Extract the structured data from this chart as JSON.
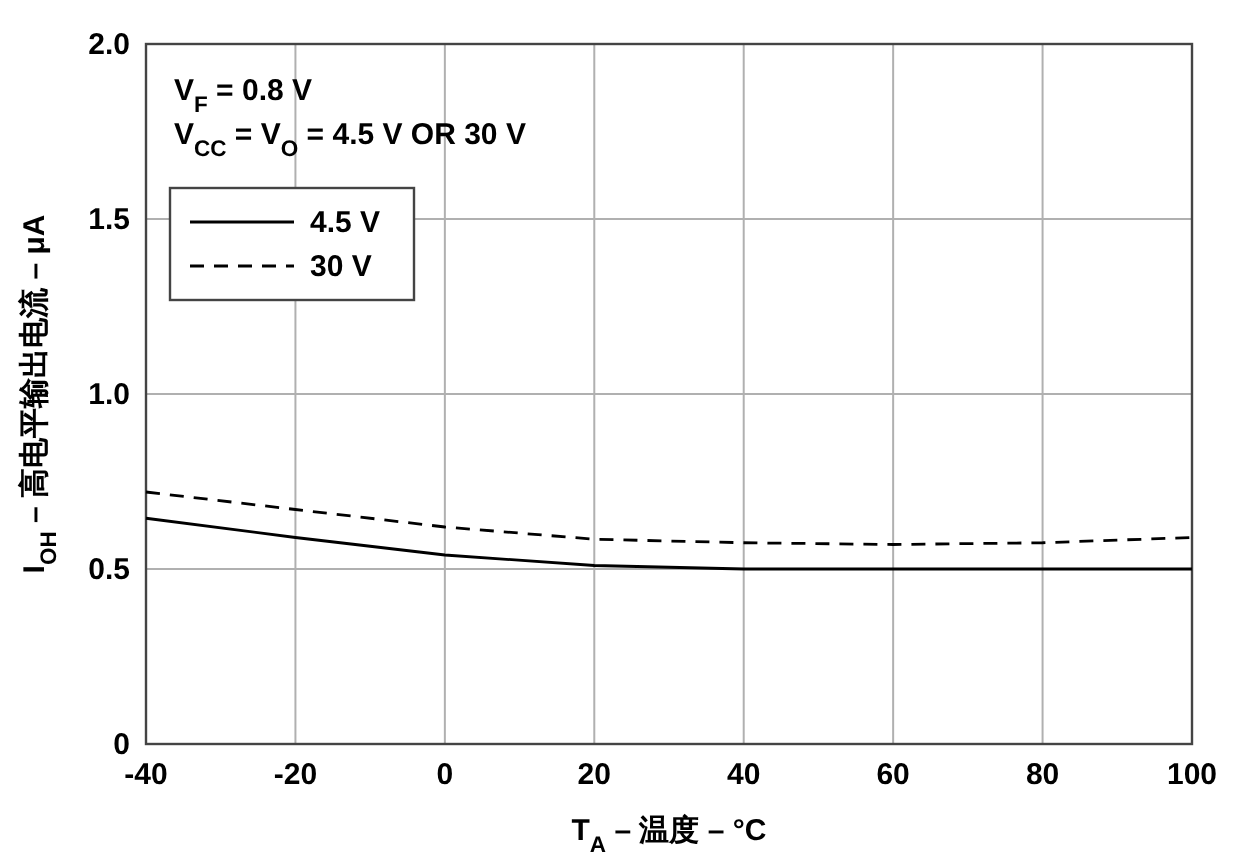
{
  "chart_data": {
    "type": "line",
    "xlabel": "T$_{A}$ – 温度 – °C",
    "ylabel": "I$_{OH}$ – 高电平输出电流 – μA",
    "annotations": [
      "V$_{F}$ = 0.8 V",
      "V$_{CC}$ = V$_{O}$ = 4.5 V OR 30 V"
    ],
    "x": [
      -40,
      -20,
      0,
      20,
      40,
      60,
      80,
      100
    ],
    "series": [
      {
        "name": "4.5 V",
        "color": "#000000",
        "line_style": "solid",
        "values": [
          0.645,
          0.59,
          0.54,
          0.51,
          0.5,
          0.5,
          0.5,
          0.5
        ]
      },
      {
        "name": "30 V",
        "color": "#000000",
        "line_style": "dashed",
        "values": [
          0.72,
          0.67,
          0.62,
          0.585,
          0.575,
          0.57,
          0.575,
          0.59
        ]
      }
    ],
    "xlim": [
      -40,
      100
    ],
    "xticks": [
      -40,
      -20,
      0,
      20,
      40,
      60,
      80,
      100
    ],
    "ylim": [
      0,
      2
    ],
    "yticks": [
      0,
      0.5,
      {
        "value": 1,
        "label": "1.0"
      },
      {
        "value": 1.5,
        "label": "1.5"
      },
      {
        "value": 2,
        "label": "2.0"
      }
    ],
    "grid": true,
    "legend": "top left",
    "marker": "none"
  }
}
